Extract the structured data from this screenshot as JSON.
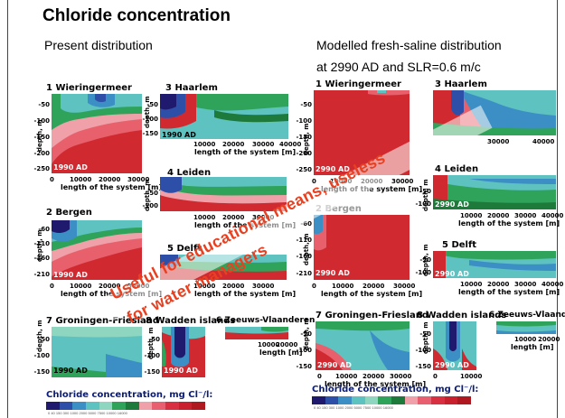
{
  "title": "Chloride concentration",
  "left_header": "Present distribution",
  "right_header_line1": "Modelled fresh-saline distribution",
  "right_header_line2": "at 2990 AD and SLR=0.6 m/c",
  "common": {
    "depth_label": "depth, m",
    "x_axis_label": "length of the system [m]",
    "x_axis_label_short": "length [m]"
  },
  "panels_left": {
    "wieringermeer": {
      "name": "1 Wieringermeer",
      "year": "1990 AD",
      "yticks": [
        "-50",
        "-100",
        "-150",
        "-200",
        "-250"
      ],
      "xticks": [
        "0",
        "10000",
        "20000",
        "30000"
      ]
    },
    "haarlem": {
      "name": "3 Haarlem",
      "year": "1990 AD",
      "yticks": [
        "-50",
        "-100",
        "-150"
      ],
      "xticks": [
        "10000",
        "20000",
        "30000",
        "40000"
      ]
    },
    "leiden": {
      "name": "4 Leiden",
      "yticks": [
        "-50",
        "-100"
      ],
      "xticks": [
        "10000",
        "20000",
        "30000"
      ]
    },
    "bergen": {
      "name": "2 Bergen",
      "year": "1990 AD",
      "yticks": [
        "-60",
        "-110",
        "-160",
        "-210"
      ],
      "xticks": [
        "0",
        "10000",
        "20000",
        "30000"
      ]
    },
    "delft": {
      "name": "5 Delft",
      "xticks": [
        "10000",
        "20000",
        "30000"
      ]
    },
    "groningen": {
      "name": "7 Groningen-Friesland",
      "year": "1990 AD",
      "yticks": [
        "-50",
        "-100",
        "-150"
      ]
    },
    "wadden": {
      "name": "8 Wadden islands",
      "year": "1990 AD",
      "yticks": [
        "-50",
        "-100",
        "-150"
      ]
    },
    "zeeuws": {
      "name": "6 Zeeuws-Vlaanderen",
      "xticks": [
        "10000",
        "20000"
      ]
    }
  },
  "panels_right": {
    "wieringermeer": {
      "name": "1 Wieringermeer",
      "year": "2990 AD",
      "yticks": [
        "-50",
        "-100",
        "-150",
        "-200",
        "-250"
      ],
      "xticks": [
        "0",
        "10000",
        "20000",
        "30000"
      ]
    },
    "haarlem": {
      "name": "3 Haarlem",
      "xticks": [
        "30000",
        "40000"
      ]
    },
    "leiden": {
      "name": "4 Leiden",
      "year": "2990 AD",
      "yticks": [
        "-50",
        "-100"
      ],
      "xticks": [
        "10000",
        "20000",
        "30000",
        "40000"
      ]
    },
    "bergen": {
      "name": "2 Bergen",
      "year": "2990 AD",
      "yticks": [
        "-60",
        "-110",
        "-160",
        "-210"
      ],
      "xticks": [
        "0",
        "10000",
        "20000",
        "30000"
      ]
    },
    "delft": {
      "name": "5 Delft",
      "year": "2990 AD",
      "yticks": [
        "-50",
        "-100"
      ],
      "xticks": [
        "10000",
        "20000",
        "30000",
        "40000"
      ]
    },
    "groningen": {
      "name": "7 Groningen-Friesland",
      "year": "2990 AD",
      "yticks": [
        "-50",
        "-100",
        "-150"
      ],
      "xticks": [
        "0",
        "10000",
        "20000",
        "30000"
      ]
    },
    "wadden": {
      "name": "8 Wadden islands",
      "year": "2990 AD",
      "yticks": [
        "-50",
        "-100",
        "-150"
      ],
      "xticks": [
        "0",
        "10000"
      ]
    },
    "zeeuws": {
      "name": "6 Zeeuws-Vlaanderen",
      "xticks": [
        "10000",
        "20000"
      ]
    }
  },
  "legend": {
    "left_title": "Chloride concentration, mg Cl⁻/l:",
    "right_title": "Chloride concentration, mg Cl⁻/l:",
    "values": "0  40  150  300  1000  2000  5000  7500  10000  16000",
    "colors": [
      "#1f1a6e",
      "#2e4fa8",
      "#3b8fc4",
      "#5ec2c0",
      "#8fd6c0",
      "#2fa35a",
      "#1e7a3a",
      "#f0a0a8",
      "#e86070",
      "#d83040",
      "#c8202c",
      "#b01820"
    ]
  },
  "overlay": {
    "line1": "Useful for educational means, useless",
    "line2": "for water managers"
  }
}
